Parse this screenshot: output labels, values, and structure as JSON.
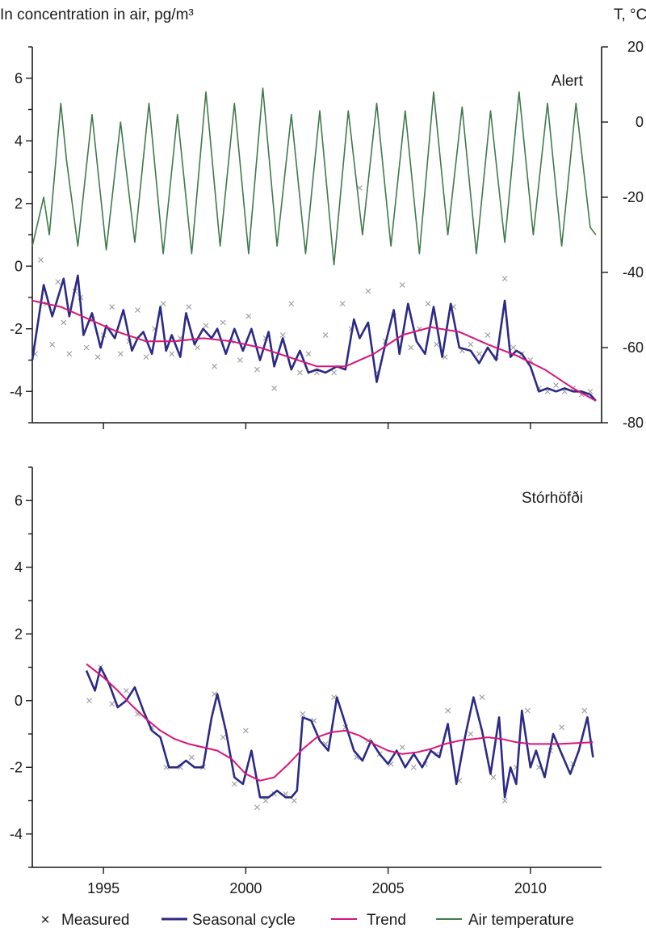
{
  "figure": {
    "ylabel_left": "In concentration in air, pg/m³",
    "ylabel_right": "T, °C"
  },
  "colors": {
    "measured": "#9a9a9a",
    "seasonal": "#2b2a86",
    "trend": "#d6157a",
    "temperature": "#3f7a4a",
    "axis": "#1a1a1a"
  },
  "legend": {
    "measured": "Measured",
    "seasonal": "Seasonal cycle",
    "trend": "Trend",
    "temperature": "Air temperature",
    "measured_symbol": "×"
  },
  "chart_data": [
    {
      "type": "line",
      "title": "Alert",
      "xlim": [
        1992.5,
        2012.5
      ],
      "xticks": [
        1995,
        2000,
        2005,
        2010
      ],
      "ylim": [
        -5,
        7
      ],
      "yticks": [
        -4,
        -2,
        0,
        2,
        4,
        6
      ],
      "y2lim": [
        -80,
        20
      ],
      "y2ticks": [
        -80,
        -60,
        -40,
        -20,
        0,
        20
      ],
      "y2label": "T, °C",
      "series": [
        {
          "name": "Trend",
          "x": [
            1992.5,
            1993.5,
            1994.5,
            1995.5,
            1996.5,
            1997.5,
            1998.5,
            1999.5,
            2000.5,
            2001.5,
            2002.5,
            2003.5,
            2004.5,
            2005.5,
            2006.5,
            2007.5,
            2008.5,
            2009.5,
            2010.5,
            2011.5,
            2012.3
          ],
          "values": [
            -1.1,
            -1.3,
            -1.7,
            -2.1,
            -2.4,
            -2.4,
            -2.3,
            -2.4,
            -2.6,
            -2.9,
            -3.2,
            -3.2,
            -2.8,
            -2.2,
            -1.95,
            -2.1,
            -2.5,
            -2.85,
            -3.3,
            -3.9,
            -4.3
          ]
        },
        {
          "name": "Seasonal cycle",
          "x": [
            1992.5,
            1992.9,
            1993.2,
            1993.6,
            1993.8,
            1994.1,
            1994.3,
            1994.6,
            1994.9,
            1995.1,
            1995.4,
            1995.7,
            1996.0,
            1996.2,
            1996.4,
            1996.7,
            1997.0,
            1997.2,
            1997.4,
            1997.7,
            1997.9,
            1998.2,
            1998.5,
            1998.8,
            1999.0,
            1999.3,
            1999.6,
            1999.9,
            2000.2,
            2000.5,
            2000.8,
            2001.0,
            2001.3,
            2001.6,
            2001.9,
            2002.2,
            2002.5,
            2002.8,
            2003.2,
            2003.5,
            2003.8,
            2004.0,
            2004.3,
            2004.6,
            2004.9,
            2005.2,
            2005.4,
            2005.7,
            2006.0,
            2006.3,
            2006.6,
            2006.9,
            2007.2,
            2007.5,
            2007.9,
            2008.2,
            2008.5,
            2008.8,
            2009.1,
            2009.3,
            2009.5,
            2009.7,
            2010.0,
            2010.3,
            2010.6,
            2010.9,
            2011.2,
            2011.5,
            2011.8,
            2012.1,
            2012.3
          ],
          "values": [
            -3.0,
            -0.6,
            -1.6,
            -0.4,
            -1.6,
            -0.3,
            -2.2,
            -1.5,
            -2.6,
            -1.9,
            -2.3,
            -1.4,
            -2.7,
            -2.3,
            -2.1,
            -2.8,
            -1.3,
            -2.7,
            -2.2,
            -2.9,
            -1.5,
            -2.5,
            -2.0,
            -2.3,
            -2.0,
            -2.8,
            -2.0,
            -2.7,
            -2.0,
            -3.0,
            -2.1,
            -3.2,
            -2.3,
            -3.3,
            -2.7,
            -3.4,
            -3.3,
            -3.4,
            -3.2,
            -3.3,
            -1.7,
            -2.3,
            -1.8,
            -3.7,
            -2.5,
            -1.4,
            -2.8,
            -1.2,
            -2.4,
            -2.8,
            -1.3,
            -2.9,
            -1.2,
            -2.6,
            -2.7,
            -3.1,
            -2.6,
            -3.0,
            -1.1,
            -2.9,
            -2.7,
            -2.8,
            -3.2,
            -4.0,
            -3.9,
            -4.0,
            -3.9,
            -4.0,
            -4.0,
            -4.1,
            -4.3
          ]
        },
        {
          "name": "Air temperature",
          "axis": "right",
          "x": [
            1992.5,
            1992.9,
            1993.1,
            1993.5,
            1993.7,
            1994.1,
            1994.6,
            1995.1,
            1995.6,
            1996.1,
            1996.6,
            1997.1,
            1997.6,
            1998.1,
            1998.6,
            1999.1,
            1999.6,
            2000.1,
            2000.6,
            2001.1,
            2001.6,
            2002.1,
            2002.6,
            2003.1,
            2003.6,
            2004.1,
            2004.6,
            2005.1,
            2005.6,
            2006.1,
            2006.6,
            2007.1,
            2007.6,
            2008.1,
            2008.6,
            2009.1,
            2009.6,
            2010.1,
            2010.6,
            2011.1,
            2011.6,
            2012.1,
            2012.3
          ],
          "values": [
            -33,
            -20,
            -30,
            5,
            -10,
            -33,
            2,
            -34,
            0,
            -32,
            5,
            -35,
            2,
            -35,
            8,
            -33,
            5,
            -35,
            9,
            -33,
            2,
            -35,
            3,
            -38,
            3,
            -30,
            5,
            -33,
            3,
            -35,
            8,
            -30,
            4,
            -35,
            3,
            -32,
            8,
            -30,
            5,
            -33,
            5,
            -28,
            -30
          ]
        },
        {
          "name": "Measured",
          "x": [
            1992.6,
            1992.8,
            1993.0,
            1993.2,
            1993.4,
            1993.6,
            1993.8,
            1994.0,
            1994.2,
            1994.4,
            1994.6,
            1994.8,
            1995.0,
            1995.3,
            1995.6,
            1995.9,
            1996.2,
            1996.5,
            1996.8,
            1997.1,
            1997.4,
            1997.7,
            1998.0,
            1998.3,
            1998.6,
            1998.9,
            1999.2,
            1999.5,
            1999.8,
            2000.1,
            2000.4,
            2000.7,
            2001.0,
            2001.3,
            2001.6,
            2001.9,
            2002.2,
            2002.5,
            2002.8,
            2003.1,
            2003.4,
            2003.7,
            2004.0,
            2004.3,
            2004.6,
            2004.9,
            2005.2,
            2005.5,
            2005.8,
            2006.1,
            2006.4,
            2006.7,
            2007.0,
            2007.3,
            2007.6,
            2007.9,
            2008.2,
            2008.5,
            2008.8,
            2009.1,
            2009.4,
            2009.7,
            2010.0,
            2010.3,
            2010.6,
            2010.9,
            2011.2,
            2011.5,
            2011.8,
            2012.1
          ],
          "values": [
            -2.8,
            0.2,
            -1.2,
            -2.5,
            -0.5,
            -1.8,
            -2.8,
            -0.8,
            -1.0,
            -2.6,
            -1.7,
            -2.9,
            -2.2,
            -1.3,
            -2.8,
            -2.4,
            -1.4,
            -2.9,
            -2.0,
            -1.2,
            -2.8,
            -2.3,
            -1.3,
            -2.6,
            -1.9,
            -3.2,
            -1.8,
            -2.4,
            -3.0,
            -1.6,
            -3.3,
            -2.3,
            -3.9,
            -2.2,
            -1.2,
            -3.4,
            -2.8,
            -3.4,
            -2.2,
            -3.4,
            -1.2,
            -2.0,
            2.5,
            -0.8,
            -3.4,
            -2.4,
            -1.6,
            -0.6,
            -2.6,
            -2.0,
            -1.2,
            -2.5,
            -2.9,
            -1.3,
            -2.7,
            -2.5,
            -2.8,
            -2.2,
            -2.9,
            -0.4,
            -2.6,
            -2.8,
            -3.0,
            -3.9,
            -4.0,
            -3.8,
            -4.0,
            -3.9,
            -4.1,
            -4.0
          ]
        }
      ]
    },
    {
      "type": "line",
      "title": "Stórhöfði",
      "xlim": [
        1992.5,
        2012.5
      ],
      "xticks": [
        1995,
        2000,
        2005,
        2010
      ],
      "xlabel_ticks": [
        "1995",
        "2000",
        "2005",
        "2010"
      ],
      "ylim": [
        -5,
        7
      ],
      "yticks": [
        -4,
        -2,
        0,
        2,
        4,
        6
      ],
      "series": [
        {
          "name": "Trend",
          "x": [
            1994.4,
            1995.0,
            1995.5,
            1996.0,
            1996.5,
            1997.0,
            1997.5,
            1998.0,
            1998.5,
            1999.0,
            1999.5,
            2000.0,
            2000.5,
            2001.0,
            2001.5,
            2002.0,
            2002.5,
            2003.0,
            2003.5,
            2004.0,
            2004.5,
            2005.0,
            2005.5,
            2006.0,
            2006.5,
            2007.0,
            2007.5,
            2008.0,
            2008.5,
            2009.0,
            2009.5,
            2010.0,
            2010.5,
            2011.0,
            2011.5,
            2012.2
          ],
          "values": [
            1.1,
            0.7,
            0.3,
            -0.15,
            -0.55,
            -0.9,
            -1.15,
            -1.3,
            -1.4,
            -1.5,
            -1.75,
            -2.2,
            -2.4,
            -2.3,
            -1.9,
            -1.45,
            -1.1,
            -0.95,
            -0.9,
            -1.05,
            -1.3,
            -1.5,
            -1.6,
            -1.55,
            -1.45,
            -1.3,
            -1.2,
            -1.15,
            -1.1,
            -1.15,
            -1.25,
            -1.3,
            -1.3,
            -1.3,
            -1.28,
            -1.25
          ]
        },
        {
          "name": "Seasonal cycle",
          "x": [
            1994.4,
            1994.7,
            1994.9,
            1995.2,
            1995.5,
            1995.8,
            1996.1,
            1996.4,
            1996.7,
            1997.0,
            1997.3,
            1997.6,
            1997.9,
            1998.2,
            1998.5,
            1998.8,
            1999.0,
            1999.3,
            1999.6,
            1999.9,
            2000.2,
            2000.5,
            2000.8,
            2001.1,
            2001.4,
            2001.6,
            2001.8,
            2002.0,
            2002.3,
            2002.6,
            2002.9,
            2003.2,
            2003.5,
            2003.8,
            2004.1,
            2004.4,
            2004.7,
            2005.0,
            2005.3,
            2005.6,
            2005.9,
            2006.2,
            2006.5,
            2006.8,
            2007.1,
            2007.4,
            2007.7,
            2008.0,
            2008.3,
            2008.6,
            2008.9,
            2009.1,
            2009.3,
            2009.5,
            2009.7,
            2010.0,
            2010.2,
            2010.5,
            2010.8,
            2011.1,
            2011.4,
            2011.7,
            2012.0,
            2012.2
          ],
          "values": [
            0.9,
            0.3,
            1.0,
            0.5,
            -0.2,
            0.0,
            0.4,
            -0.3,
            -0.9,
            -1.1,
            -2.0,
            -2.0,
            -1.8,
            -2.0,
            -2.0,
            -0.5,
            0.2,
            -0.9,
            -2.3,
            -2.5,
            -1.5,
            -2.9,
            -2.9,
            -2.7,
            -2.9,
            -2.9,
            -2.7,
            -0.5,
            -0.6,
            -1.2,
            -1.5,
            0.1,
            -0.7,
            -1.5,
            -1.8,
            -1.2,
            -1.6,
            -1.9,
            -1.5,
            -2.0,
            -1.6,
            -2.0,
            -1.5,
            -1.7,
            -0.7,
            -2.5,
            -1.1,
            0.1,
            -0.9,
            -2.2,
            -0.5,
            -2.9,
            -2.0,
            -2.5,
            -0.3,
            -2.0,
            -1.5,
            -2.3,
            -1.0,
            -1.6,
            -2.2,
            -1.5,
            -0.5,
            -1.7
          ]
        },
        {
          "name": "Measured",
          "x": [
            1994.5,
            1994.9,
            1995.3,
            1995.8,
            1996.2,
            1996.7,
            1997.2,
            1997.7,
            1998.1,
            1998.5,
            1998.9,
            1999.2,
            1999.6,
            2000.0,
            2000.4,
            2000.7,
            2001.0,
            2001.4,
            2001.7,
            2002.0,
            2002.4,
            2002.8,
            2003.1,
            2003.5,
            2003.9,
            2004.3,
            2004.7,
            2005.1,
            2005.5,
            2005.9,
            2006.3,
            2006.7,
            2007.1,
            2007.5,
            2007.9,
            2008.3,
            2008.7,
            2009.1,
            2009.5,
            2009.9,
            2010.3,
            2010.7,
            2011.1,
            2011.5,
            2011.9
          ],
          "values": [
            0.0,
            1.0,
            -0.1,
            0.3,
            -0.4,
            -0.8,
            -2.0,
            -2.0,
            -1.7,
            -2.0,
            0.2,
            -1.1,
            -2.5,
            -0.9,
            -3.2,
            -3.0,
            -2.8,
            -2.8,
            -3.0,
            -0.4,
            -0.6,
            -1.3,
            0.1,
            -0.8,
            -1.7,
            -1.2,
            -1.6,
            -1.9,
            -1.4,
            -2.0,
            -1.9,
            -1.6,
            -0.3,
            -2.4,
            -1.0,
            0.1,
            -2.3,
            -3.0,
            -2.0,
            -0.3,
            -2.0,
            -1.5,
            -0.8,
            -1.9,
            -0.3
          ]
        }
      ]
    }
  ]
}
